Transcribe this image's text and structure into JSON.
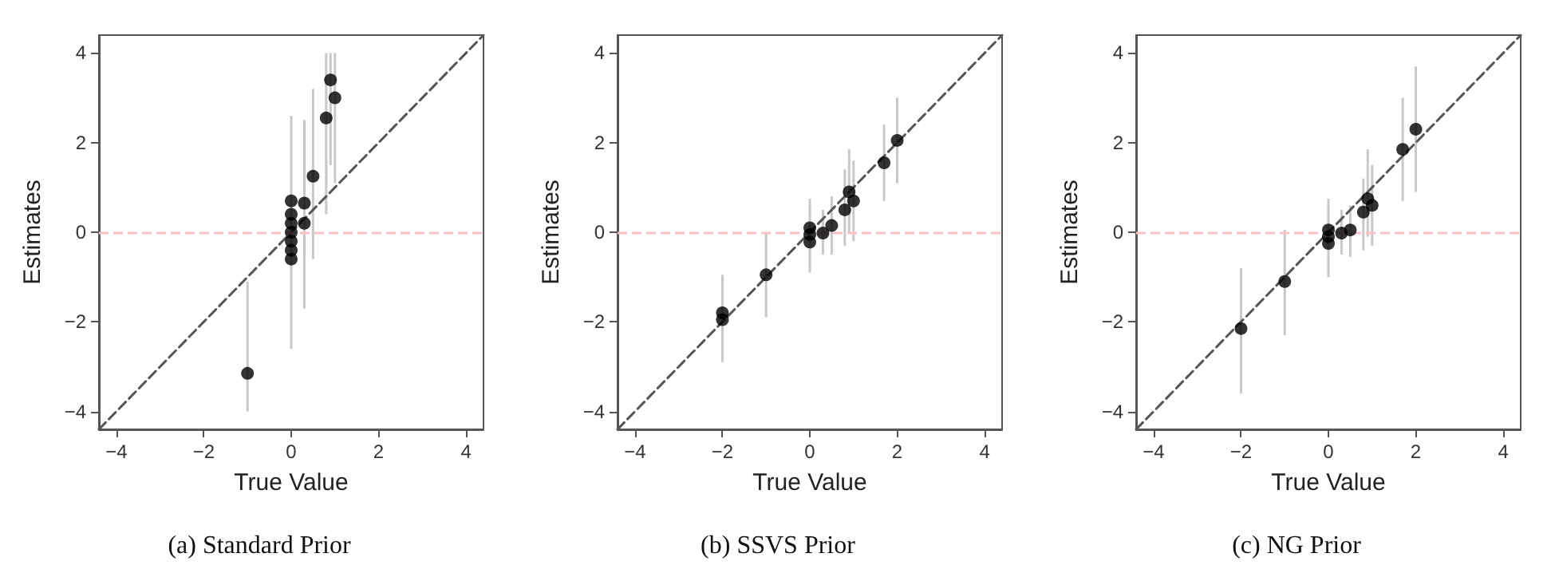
{
  "chart_data": [
    {
      "type": "scatter",
      "title": "(a) Standard Prior",
      "xlabel": "True Value",
      "ylabel": "Estimates",
      "xlim": [
        -4.4,
        4.4
      ],
      "ylim": [
        -4.4,
        4.4
      ],
      "xticks": [
        -4,
        -2,
        0,
        2,
        4
      ],
      "yticks": [
        -4,
        -2,
        0,
        2,
        4
      ],
      "marker": "circle",
      "ref_lines": [
        {
          "axis": "y",
          "value": 0,
          "color": "#ffc0cb",
          "line_style": "dashed"
        }
      ],
      "series": [
        {
          "color": "#000000",
          "x": [
            -1,
            0,
            0,
            0,
            0,
            0,
            0,
            0,
            0.3,
            0.3,
            0.5,
            0.8,
            0.9,
            1
          ],
          "values": [
            -3.15,
            -0.6,
            -0.4,
            -0.2,
            0,
            0.2,
            0.4,
            0.7,
            0.2,
            0.65,
            1.25,
            2.55,
            3.4,
            3.0
          ],
          "errors": [
            [
              -4,
              -1.1
            ],
            [
              -2.6,
              2.6
            ],
            null,
            null,
            null,
            null,
            null,
            null,
            [
              -1.7,
              2.5
            ],
            [
              -0.5,
              2.5
            ],
            [
              -0.6,
              3.2
            ],
            [
              0.4,
              4
            ],
            [
              1.5,
              4
            ],
            [
              1.1,
              4
            ]
          ]
        },
        {
          "type": "line",
          "color": "#555555",
          "line_style": "dashed",
          "marker": "none",
          "x": [
            -4.4,
            4.4
          ],
          "values": [
            -4.4,
            4.4
          ]
        }
      ]
    },
    {
      "type": "scatter",
      "title": "(b) SSVS Prior",
      "xlabel": "True Value",
      "ylabel": "Estimates",
      "xlim": [
        -4.4,
        4.4
      ],
      "ylim": [
        -4.4,
        4.4
      ],
      "xticks": [
        -4,
        -2,
        0,
        2,
        4
      ],
      "yticks": [
        -4,
        -2,
        0,
        2,
        4
      ],
      "marker": "circle",
      "ref_lines": [
        {
          "axis": "y",
          "value": 0,
          "color": "#ffc0cb",
          "line_style": "dashed"
        }
      ],
      "series": [
        {
          "color": "#000000",
          "x": [
            -2,
            -2,
            -1,
            0,
            0,
            0,
            0.3,
            0.5,
            0.8,
            0.9,
            1,
            1.7,
            2
          ],
          "values": [
            -1.8,
            -1.95,
            -0.95,
            0.1,
            -0.05,
            -0.22,
            -0.02,
            0.15,
            0.5,
            0.9,
            0.7,
            1.55,
            2.05
          ],
          "errors": [
            [
              -2.9,
              -0.95
            ],
            null,
            [
              -1.9,
              0
            ],
            [
              -0.9,
              0.75
            ],
            null,
            null,
            [
              -0.5,
              0.5
            ],
            [
              -0.5,
              0.8
            ],
            [
              -0.3,
              1.4
            ],
            [
              0,
              1.85
            ],
            [
              -0.2,
              1.6
            ],
            [
              0.7,
              2.4
            ],
            [
              1.1,
              3
            ]
          ]
        },
        {
          "type": "line",
          "color": "#555555",
          "line_style": "dashed",
          "marker": "none",
          "x": [
            -4.4,
            4.4
          ],
          "values": [
            -4.4,
            4.4
          ]
        }
      ]
    },
    {
      "type": "scatter",
      "title": "(c) NG Prior",
      "xlabel": "True Value",
      "ylabel": "Estimates",
      "xlim": [
        -4.4,
        4.4
      ],
      "ylim": [
        -4.4,
        4.4
      ],
      "xticks": [
        -4,
        -2,
        0,
        2,
        4
      ],
      "yticks": [
        -4,
        -2,
        0,
        2,
        4
      ],
      "marker": "circle",
      "ref_lines": [
        {
          "axis": "y",
          "value": 0,
          "color": "#ffc0cb",
          "line_style": "dashed"
        }
      ],
      "series": [
        {
          "color": "#000000",
          "x": [
            -2,
            -1,
            0,
            0,
            0,
            0.3,
            0.5,
            0.8,
            0.9,
            1,
            1.7,
            2
          ],
          "values": [
            -2.15,
            -1.1,
            0.05,
            -0.1,
            -0.25,
            -0.02,
            0.05,
            0.45,
            0.75,
            0.6,
            1.85,
            2.3
          ],
          "errors": [
            [
              -3.6,
              -0.8
            ],
            [
              -2.3,
              0.05
            ],
            [
              -1,
              0.75
            ],
            null,
            null,
            [
              -0.5,
              0.5
            ],
            [
              -0.55,
              0.6
            ],
            [
              -0.4,
              1.2
            ],
            [
              -0.1,
              1.85
            ],
            [
              -0.3,
              1.5
            ],
            [
              0.7,
              3
            ],
            [
              0.9,
              3.7
            ]
          ]
        },
        {
          "type": "line",
          "color": "#555555",
          "line_style": "dashed",
          "marker": "none",
          "x": [
            -4.4,
            4.4
          ],
          "values": [
            -4.4,
            4.4
          ]
        }
      ]
    }
  ]
}
